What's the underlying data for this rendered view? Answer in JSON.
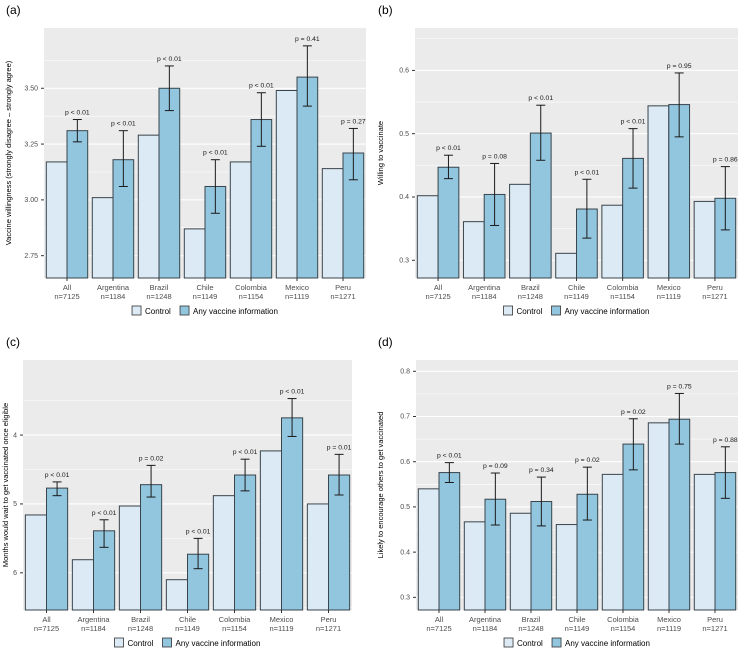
{
  "colors": {
    "control": "#dceaf5",
    "treatment": "#92c5de",
    "bar_border": "#39444b",
    "panel_bg": "#ebebeb",
    "grid": "#ffffff",
    "error_bar": "#1a1a1a",
    "tick_text": "#4d4d4d",
    "label_text": "#000000",
    "tick_mark": "#333333"
  },
  "chart_data": [
    {
      "id": "a",
      "tag": "(a)",
      "type": "bar",
      "ylabel": "Vaccine willingness (strongly disagree – strongly agree)",
      "legend": [
        "Control",
        "Any vaccine information"
      ],
      "legend_position": "bottom",
      "grid": true,
      "reversed": false,
      "ylim": [
        2.65,
        3.77
      ],
      "yticks": [
        2.75,
        3.0,
        3.25,
        3.5
      ],
      "ytick_labels": [
        "2.75",
        "3.00",
        "3.25",
        "3.50"
      ],
      "categories": [
        {
          "name": "All",
          "n": "n=7125"
        },
        {
          "name": "Argentina",
          "n": "n=1184"
        },
        {
          "name": "Brazil",
          "n": "n=1248"
        },
        {
          "name": "Chile",
          "n": "n=1149"
        },
        {
          "name": "Colombia",
          "n": "n=1154"
        },
        {
          "name": "Mexico",
          "n": "n=1119"
        },
        {
          "name": "Peru",
          "n": "n=1271"
        }
      ],
      "series": [
        {
          "name": "Control",
          "values": [
            3.17,
            3.01,
            3.29,
            2.87,
            3.17,
            3.49,
            3.14
          ]
        },
        {
          "name": "Any vaccine information",
          "values": [
            3.31,
            3.18,
            3.5,
            3.06,
            3.36,
            3.55,
            3.21
          ],
          "ci_low": [
            3.26,
            3.06,
            3.4,
            2.94,
            3.24,
            3.42,
            3.09
          ],
          "ci_high": [
            3.36,
            3.31,
            3.6,
            3.18,
            3.48,
            3.69,
            3.32
          ]
        }
      ],
      "p_labels": [
        "p < 0.01",
        "p < 0.01",
        "p < 0.01",
        "p < 0.01",
        "p < 0.01",
        "p = 0.41",
        "p = 0.27"
      ]
    },
    {
      "id": "b",
      "tag": "(b)",
      "type": "bar",
      "ylabel": "Willing to vaccinate",
      "legend": [
        "Control",
        "Any vaccine information"
      ],
      "legend_position": "bottom",
      "grid": true,
      "reversed": false,
      "ylim": [
        0.272,
        0.667
      ],
      "yticks": [
        0.3,
        0.4,
        0.5,
        0.6
      ],
      "ytick_labels": [
        "0.3",
        "0.4",
        "0.5",
        "0.6"
      ],
      "categories": [
        {
          "name": "All",
          "n": "n=7125"
        },
        {
          "name": "Argentina",
          "n": "n=1184"
        },
        {
          "name": "Brazil",
          "n": "n=1248"
        },
        {
          "name": "Chile",
          "n": "n=1149"
        },
        {
          "name": "Colombia",
          "n": "n=1154"
        },
        {
          "name": "Mexico",
          "n": "n=1119"
        },
        {
          "name": "Peru",
          "n": "n=1271"
        }
      ],
      "series": [
        {
          "name": "Control",
          "values": [
            0.402,
            0.361,
            0.42,
            0.311,
            0.387,
            0.544,
            0.393
          ]
        },
        {
          "name": "Any vaccine information",
          "values": [
            0.447,
            0.404,
            0.501,
            0.381,
            0.461,
            0.546,
            0.398
          ],
          "ci_low": [
            0.429,
            0.355,
            0.458,
            0.335,
            0.414,
            0.495,
            0.348
          ],
          "ci_high": [
            0.466,
            0.453,
            0.545,
            0.428,
            0.508,
            0.596,
            0.448
          ]
        }
      ],
      "p_labels": [
        "p < 0.01",
        "p = 0.08",
        "p < 0.01",
        "p < 0.01",
        "p < 0.01",
        "p = 0.95",
        "p = 0.86"
      ]
    },
    {
      "id": "c",
      "tag": "(c)",
      "type": "bar",
      "ylabel": "Months would wait to get vaccinated once eligible",
      "legend": [
        "Control",
        "Any vaccine information"
      ],
      "legend_position": "bottom",
      "grid": true,
      "reversed": true,
      "ylim": [
        6.54,
        2.91
      ],
      "yticks": [
        4,
        5,
        6
      ],
      "ytick_labels": [
        "4",
        "5",
        "6"
      ],
      "categories": [
        {
          "name": "All",
          "n": "n=7125"
        },
        {
          "name": "Argentina",
          "n": "n=1184"
        },
        {
          "name": "Brazil",
          "n": "n=1248"
        },
        {
          "name": "Chile",
          "n": "n=1149"
        },
        {
          "name": "Colombia",
          "n": "n=1154"
        },
        {
          "name": "Mexico",
          "n": "n=1119"
        },
        {
          "name": "Peru",
          "n": "n=1271"
        }
      ],
      "series": [
        {
          "name": "Control",
          "values": [
            5.16,
            5.81,
            5.03,
            6.1,
            4.88,
            4.23,
            5.0
          ]
        },
        {
          "name": "Any vaccine information",
          "values": [
            4.77,
            5.39,
            4.72,
            5.73,
            4.58,
            3.75,
            4.58
          ],
          "ci_low": [
            4.68,
            5.23,
            4.44,
            5.5,
            4.35,
            3.47,
            4.28
          ],
          "ci_high": [
            4.88,
            5.63,
            4.9,
            5.94,
            4.81,
            4.02,
            4.87
          ]
        }
      ],
      "p_labels": [
        "p < 0.01",
        "p < 0.01",
        "p = 0.02",
        "p < 0.01",
        "p < 0.01",
        "p < 0.01",
        "p = 0.01"
      ]
    },
    {
      "id": "d",
      "tag": "(d)",
      "type": "bar",
      "ylabel": "Likely to encourage others to get vaccinated",
      "legend": [
        "Control",
        "Any vaccine information"
      ],
      "legend_position": "bottom",
      "grid": true,
      "reversed": false,
      "ylim": [
        0.272,
        0.825
      ],
      "yticks": [
        0.3,
        0.4,
        0.5,
        0.6,
        0.7,
        0.8
      ],
      "ytick_labels": [
        "0.3",
        "0.4",
        "0.5",
        "0.6",
        "0.7",
        "0.8"
      ],
      "categories": [
        {
          "name": "All",
          "n": "n=7125"
        },
        {
          "name": "Argentina",
          "n": "n=1184"
        },
        {
          "name": "Brazil",
          "n": "n=1248"
        },
        {
          "name": "Chile",
          "n": "n=1149"
        },
        {
          "name": "Colombia",
          "n": "n=1154"
        },
        {
          "name": "Mexico",
          "n": "n=1119"
        },
        {
          "name": "Peru",
          "n": "n=1271"
        }
      ],
      "series": [
        {
          "name": "Control",
          "values": [
            0.54,
            0.467,
            0.486,
            0.461,
            0.572,
            0.686,
            0.572
          ]
        },
        {
          "name": "Any vaccine information",
          "values": [
            0.576,
            0.517,
            0.512,
            0.528,
            0.639,
            0.694,
            0.576
          ],
          "ci_low": [
            0.554,
            0.46,
            0.458,
            0.471,
            0.582,
            0.639,
            0.519
          ],
          "ci_high": [
            0.598,
            0.575,
            0.566,
            0.588,
            0.695,
            0.751,
            0.633
          ]
        }
      ],
      "p_labels": [
        "p < 0.01",
        "p = 0.09",
        "p = 0.34",
        "p = 0.02",
        "p = 0.02",
        "p = 0.75",
        "p = 0.88"
      ]
    }
  ]
}
